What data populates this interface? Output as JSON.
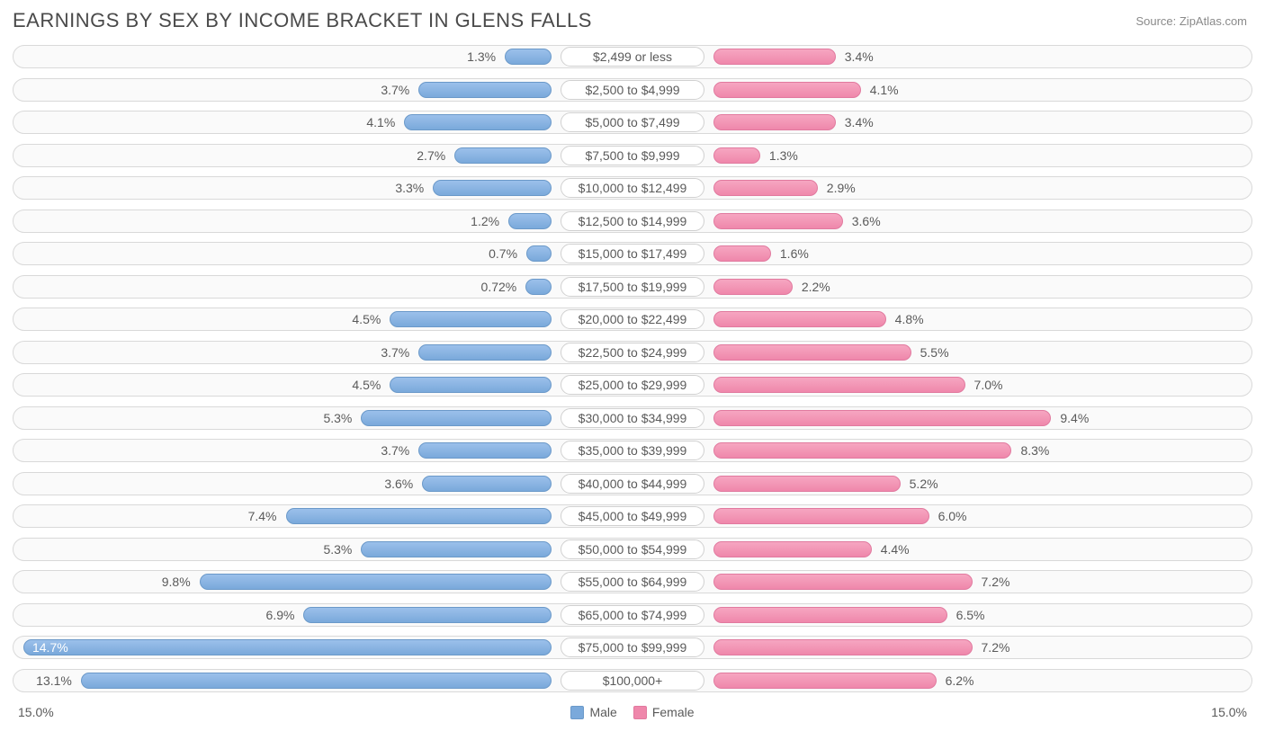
{
  "header": {
    "title": "EARNINGS BY SEX BY INCOME BRACKET IN GLENS FALLS",
    "source": "Source: ZipAtlas.com"
  },
  "chart": {
    "type": "diverging-bar",
    "axis_max": 15.0,
    "axis_left_label": "15.0%",
    "axis_right_label": "15.0%",
    "male_color": "#7aa9db",
    "female_color": "#ef87ab",
    "track_bg": "#fafafa",
    "track_border": "#d9d9d9",
    "center_label_bg": "#ffffff",
    "legend": {
      "male": "Male",
      "female": "Female"
    },
    "rows": [
      {
        "label": "$2,499 or less",
        "male": 1.3,
        "male_txt": "1.3%",
        "female": 3.4,
        "female_txt": "3.4%"
      },
      {
        "label": "$2,500 to $4,999",
        "male": 3.7,
        "male_txt": "3.7%",
        "female": 4.1,
        "female_txt": "4.1%"
      },
      {
        "label": "$5,000 to $7,499",
        "male": 4.1,
        "male_txt": "4.1%",
        "female": 3.4,
        "female_txt": "3.4%"
      },
      {
        "label": "$7,500 to $9,999",
        "male": 2.7,
        "male_txt": "2.7%",
        "female": 1.3,
        "female_txt": "1.3%"
      },
      {
        "label": "$10,000 to $12,499",
        "male": 3.3,
        "male_txt": "3.3%",
        "female": 2.9,
        "female_txt": "2.9%"
      },
      {
        "label": "$12,500 to $14,999",
        "male": 1.2,
        "male_txt": "1.2%",
        "female": 3.6,
        "female_txt": "3.6%"
      },
      {
        "label": "$15,000 to $17,499",
        "male": 0.7,
        "male_txt": "0.7%",
        "female": 1.6,
        "female_txt": "1.6%"
      },
      {
        "label": "$17,500 to $19,999",
        "male": 0.72,
        "male_txt": "0.72%",
        "female": 2.2,
        "female_txt": "2.2%"
      },
      {
        "label": "$20,000 to $22,499",
        "male": 4.5,
        "male_txt": "4.5%",
        "female": 4.8,
        "female_txt": "4.8%"
      },
      {
        "label": "$22,500 to $24,999",
        "male": 3.7,
        "male_txt": "3.7%",
        "female": 5.5,
        "female_txt": "5.5%"
      },
      {
        "label": "$25,000 to $29,999",
        "male": 4.5,
        "male_txt": "4.5%",
        "female": 7.0,
        "female_txt": "7.0%"
      },
      {
        "label": "$30,000 to $34,999",
        "male": 5.3,
        "male_txt": "5.3%",
        "female": 9.4,
        "female_txt": "9.4%"
      },
      {
        "label": "$35,000 to $39,999",
        "male": 3.7,
        "male_txt": "3.7%",
        "female": 8.3,
        "female_txt": "8.3%"
      },
      {
        "label": "$40,000 to $44,999",
        "male": 3.6,
        "male_txt": "3.6%",
        "female": 5.2,
        "female_txt": "5.2%"
      },
      {
        "label": "$45,000 to $49,999",
        "male": 7.4,
        "male_txt": "7.4%",
        "female": 6.0,
        "female_txt": "6.0%"
      },
      {
        "label": "$50,000 to $54,999",
        "male": 5.3,
        "male_txt": "5.3%",
        "female": 4.4,
        "female_txt": "4.4%"
      },
      {
        "label": "$55,000 to $64,999",
        "male": 9.8,
        "male_txt": "9.8%",
        "female": 7.2,
        "female_txt": "7.2%"
      },
      {
        "label": "$65,000 to $74,999",
        "male": 6.9,
        "male_txt": "6.9%",
        "female": 6.5,
        "female_txt": "6.5%"
      },
      {
        "label": "$75,000 to $99,999",
        "male": 14.7,
        "male_txt": "14.7%",
        "female": 7.2,
        "female_txt": "7.2%"
      },
      {
        "label": "$100,000+",
        "male": 13.1,
        "male_txt": "13.1%",
        "female": 6.2,
        "female_txt": "6.2%"
      }
    ]
  }
}
